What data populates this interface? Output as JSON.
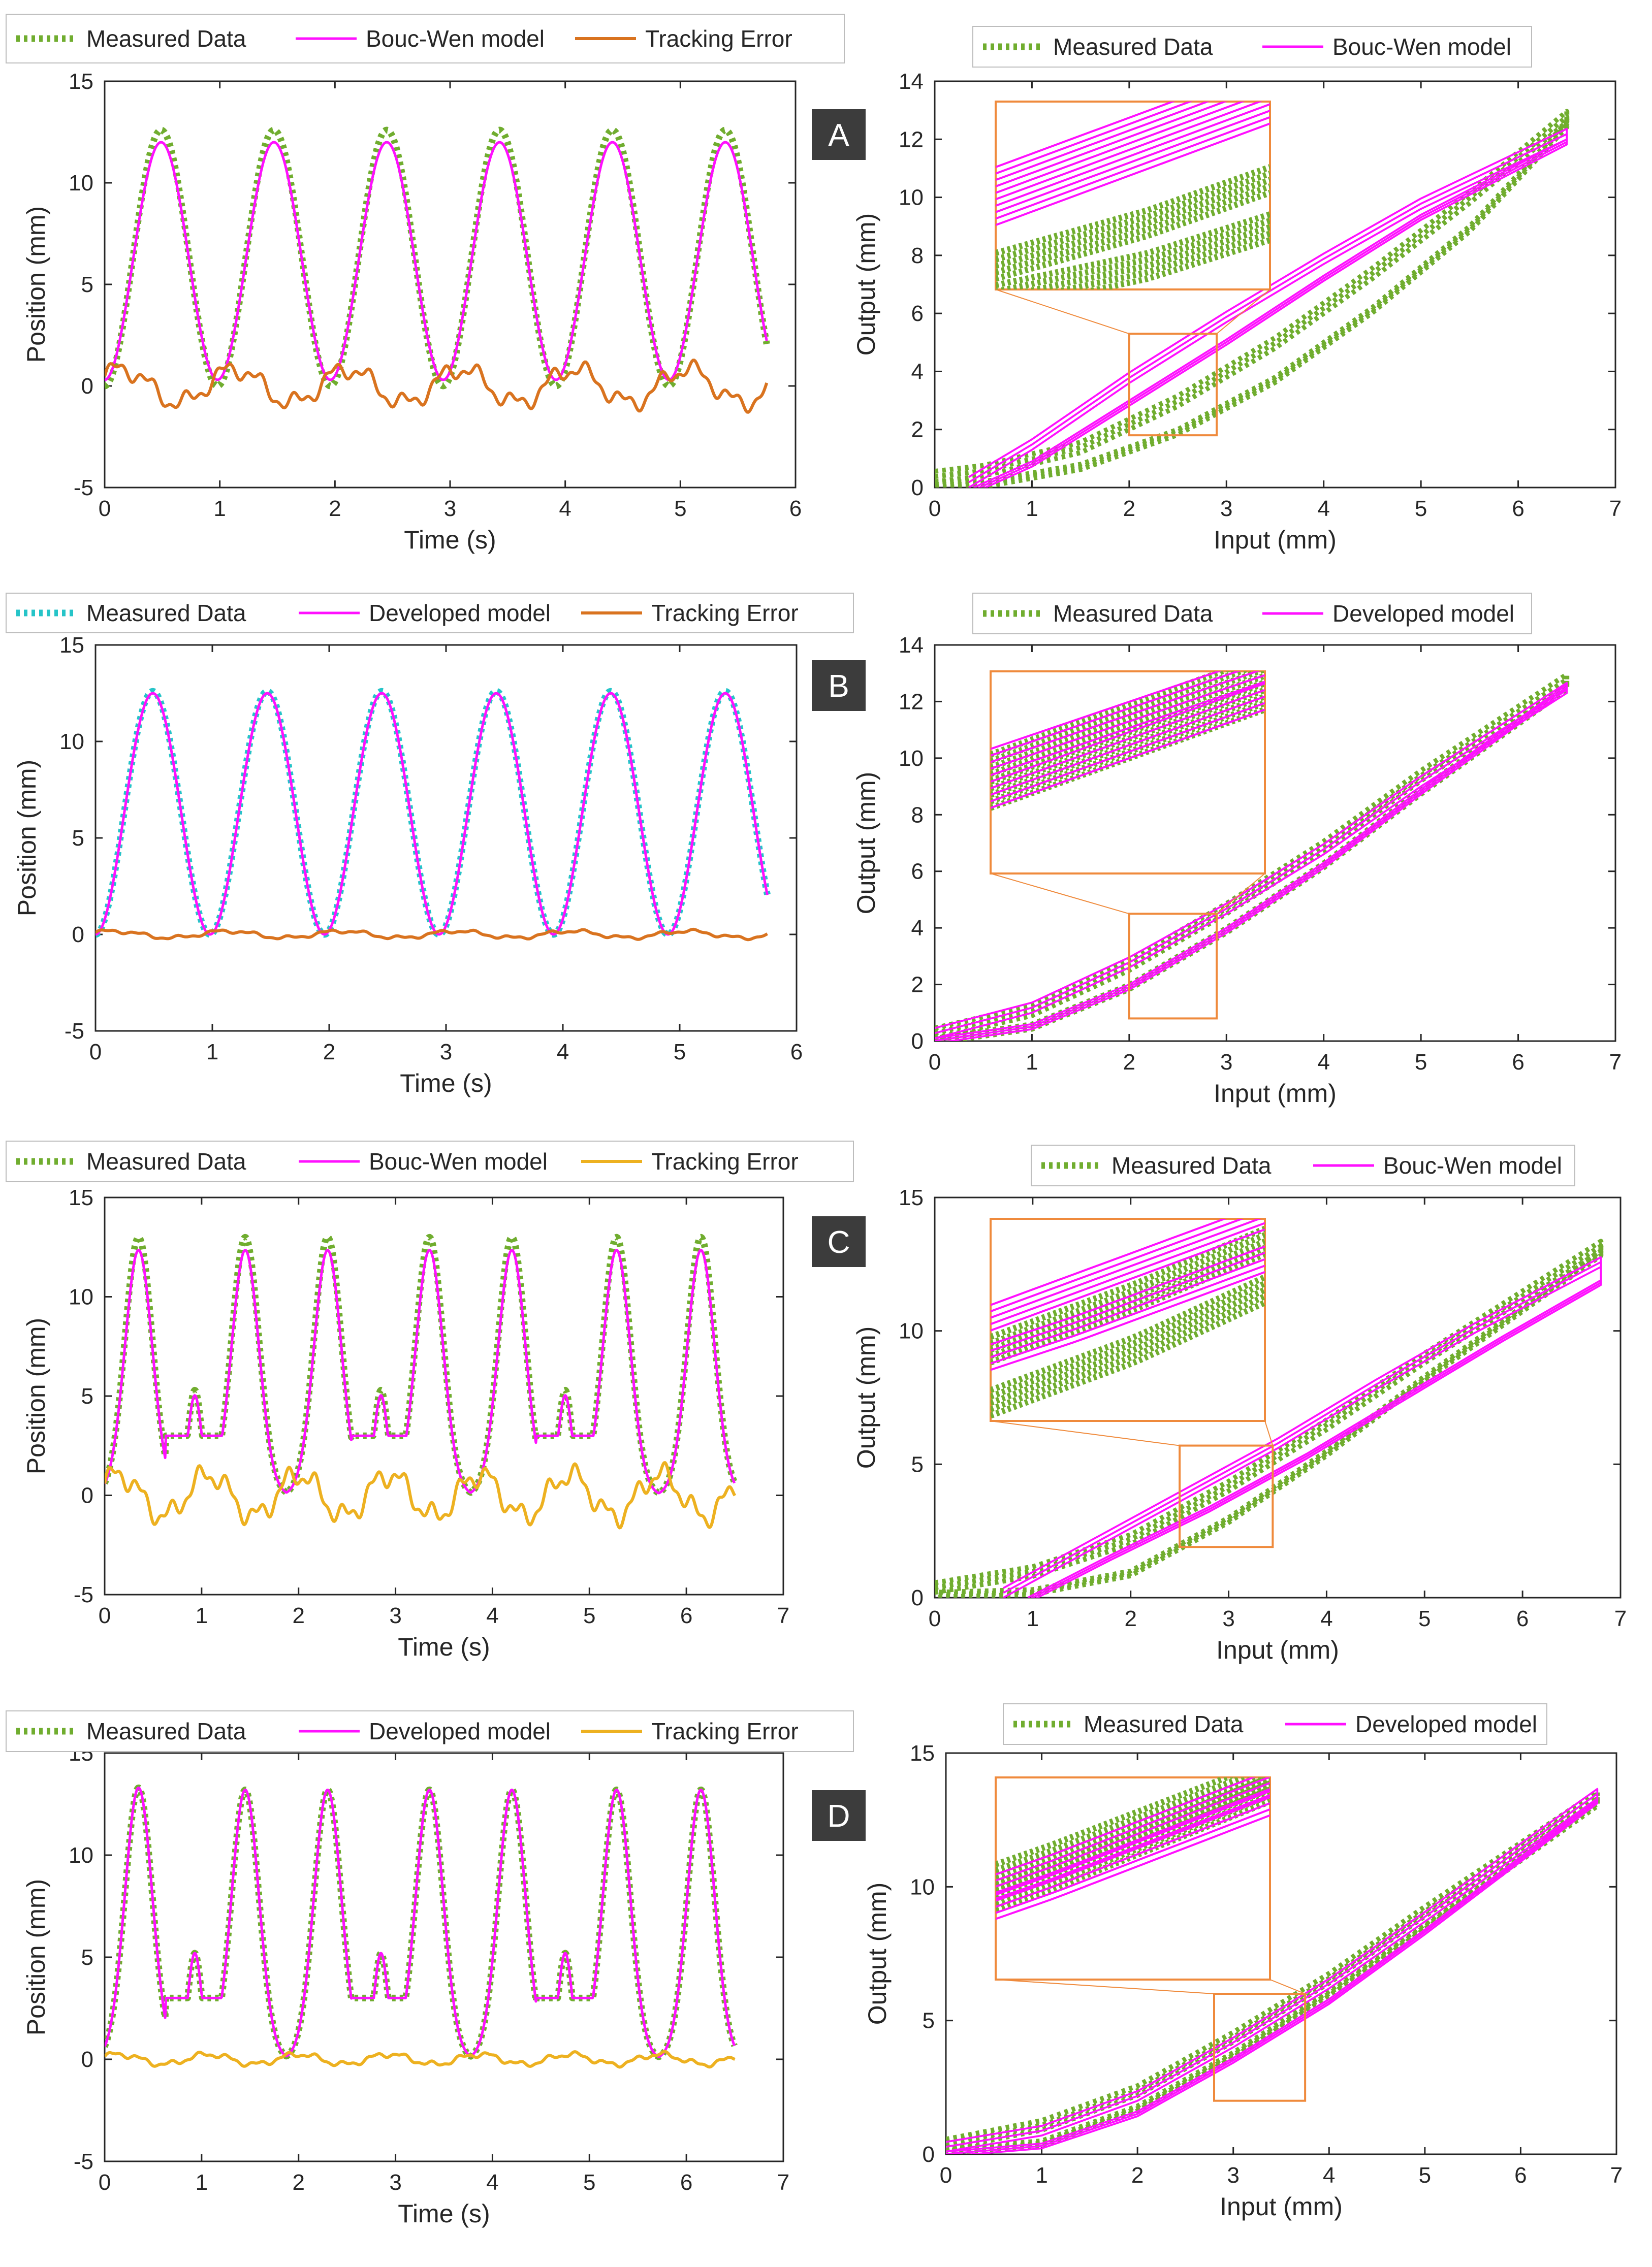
{
  "colors": {
    "measured_green": "#70ad2f",
    "measured_cyan": "#26c4c8",
    "model_magenta": "#ff10ff",
    "error_orange": "#d9731f",
    "error_yellow": "#edb120",
    "inset_orange": "#ef8a3c",
    "label_bg": "#3c3c3c",
    "axis": "#262626"
  },
  "chart_data": [
    {
      "panel": "A-left",
      "type": "line",
      "legend": [
        "Measured Data",
        "Bouc-Wen model",
        "Tracking Error"
      ],
      "legend_styles": [
        "dot-green",
        "line-magenta",
        "line-orange"
      ],
      "xlabel": "Time (s)",
      "ylabel": "Position (mm)",
      "xlim": [
        0,
        6
      ],
      "ylim": [
        -5,
        15
      ],
      "xticks": [
        "0",
        "1",
        "2",
        "3",
        "4",
        "5",
        "6"
      ],
      "yticks": [
        "-5",
        "0",
        "5",
        "10",
        "15"
      ],
      "period_s": 0.98,
      "t_end": 5.75,
      "series": [
        {
          "name": "Measured Data",
          "shape": "sine",
          "min": 0,
          "max": 12.6
        },
        {
          "name": "Bouc-Wen model",
          "shape": "sine",
          "min": 0.3,
          "max": 12.0
        },
        {
          "name": "Tracking Error",
          "shape": "error",
          "amplitude": 1.2
        }
      ]
    },
    {
      "panel": "A-right",
      "label": "A",
      "type": "line",
      "legend": [
        "Measured Data",
        "Bouc-Wen model"
      ],
      "legend_styles": [
        "dot-green",
        "line-magenta"
      ],
      "xlabel": "Input (mm)",
      "ylabel": "Output (mm)",
      "xlim": [
        0,
        7
      ],
      "ylim": [
        0,
        14
      ],
      "xticks": [
        "0",
        "1",
        "2",
        "3",
        "4",
        "5",
        "6",
        "7"
      ],
      "yticks": [
        "0",
        "2",
        "4",
        "6",
        "8",
        "10",
        "12",
        "14"
      ],
      "zoom_box": {
        "x": [
          2.0,
          2.9
        ],
        "y": [
          1.8,
          5.3
        ]
      },
      "series": [
        {
          "name": "Measured Data",
          "upper": [
            [
              0,
              0.2
            ],
            [
              0.5,
              0.4
            ],
            [
              1.5,
              1.2
            ],
            [
              2.5,
              2.8
            ],
            [
              3.5,
              4.8
            ],
            [
              4.5,
              7.2
            ],
            [
              5.5,
              9.8
            ],
            [
              6.5,
              12.6
            ]
          ],
          "lower": [
            [
              0,
              0.2
            ],
            [
              0.5,
              0.2
            ],
            [
              1.5,
              0.8
            ],
            [
              2.5,
              2.0
            ],
            [
              3.5,
              3.8
            ],
            [
              4.5,
              6.2
            ],
            [
              5.5,
              9.0
            ],
            [
              6.5,
              12.6
            ]
          ]
        },
        {
          "name": "Bouc-Wen model",
          "upper": [
            [
              0.35,
              0
            ],
            [
              1,
              1.3
            ],
            [
              2,
              3.6
            ],
            [
              3,
              5.7
            ],
            [
              4,
              7.7
            ],
            [
              5,
              9.6
            ],
            [
              6.5,
              12.0
            ]
          ],
          "lower": [
            [
              0.4,
              0
            ],
            [
              1,
              0.9
            ],
            [
              2,
              3.0
            ],
            [
              3,
              5.1
            ],
            [
              4,
              7.3
            ],
            [
              5,
              9.4
            ],
            [
              6.5,
              12.0
            ]
          ]
        }
      ]
    },
    {
      "panel": "B-left",
      "type": "line",
      "legend": [
        "Measured Data",
        "Developed model",
        "Tracking Error"
      ],
      "legend_styles": [
        "dot-cyan",
        "line-magenta",
        "line-orange"
      ],
      "xlabel": "Time (s)",
      "ylabel": "Position (mm)",
      "xlim": [
        0,
        6
      ],
      "ylim": [
        -5,
        15
      ],
      "xticks": [
        "0",
        "1",
        "2",
        "3",
        "4",
        "5",
        "6"
      ],
      "yticks": [
        "-5",
        "0",
        "5",
        "10",
        "15"
      ],
      "period_s": 0.98,
      "t_end": 5.75,
      "series": [
        {
          "name": "Measured Data",
          "shape": "sine",
          "min": 0,
          "max": 12.6
        },
        {
          "name": "Developed model",
          "shape": "sine",
          "min": 0,
          "max": 12.5
        },
        {
          "name": "Tracking Error",
          "shape": "error",
          "amplitude": 0.25
        }
      ]
    },
    {
      "panel": "B-right",
      "label": "B",
      "type": "line",
      "legend": [
        "Measured Data",
        "Developed model"
      ],
      "legend_styles": [
        "dot-green",
        "line-magenta"
      ],
      "xlabel": "Input (mm)",
      "ylabel": "Output (mm)",
      "xlim": [
        0,
        7
      ],
      "ylim": [
        0,
        14
      ],
      "xticks": [
        "0",
        "1",
        "2",
        "3",
        "4",
        "5",
        "6",
        "7"
      ],
      "yticks": [
        "0",
        "2",
        "4",
        "6",
        "8",
        "10",
        "12",
        "14"
      ],
      "zoom_box": {
        "x": [
          2.0,
          2.9
        ],
        "y": [
          0.8,
          4.5
        ]
      },
      "series": [
        {
          "name": "Measured Data",
          "upper": [
            [
              0,
              0.1
            ],
            [
              1,
              0.9
            ],
            [
              2,
              2.5
            ],
            [
              3,
              4.5
            ],
            [
              4,
              6.7
            ],
            [
              5,
              9.2
            ],
            [
              6.5,
              12.6
            ]
          ],
          "lower": [
            [
              0,
              0.1
            ],
            [
              1,
              0.6
            ],
            [
              2,
              2.0
            ],
            [
              3,
              4.0
            ],
            [
              4,
              6.3
            ],
            [
              5,
              8.9
            ],
            [
              6.5,
              12.6
            ]
          ]
        },
        {
          "name": "Developed model",
          "upper": [
            [
              0,
              0.1
            ],
            [
              1,
              1.0
            ],
            [
              2,
              2.6
            ],
            [
              3,
              4.5
            ],
            [
              4,
              6.6
            ],
            [
              5,
              9.0
            ],
            [
              6.5,
              12.3
            ]
          ],
          "lower": [
            [
              0,
              0.1
            ],
            [
              1,
              0.6
            ],
            [
              2,
              2.0
            ],
            [
              3,
              4.0
            ],
            [
              4,
              6.3
            ],
            [
              5,
              8.9
            ],
            [
              6.5,
              12.6
            ]
          ]
        }
      ]
    },
    {
      "panel": "C-left",
      "type": "line",
      "legend": [
        "Measured Data",
        "Bouc-Wen model",
        "Tracking Error"
      ],
      "legend_styles": [
        "dot-green",
        "line-magenta",
        "line-yellow"
      ],
      "xlabel": "Time (s)",
      "ylabel": "Position (mm)",
      "xlim": [
        0,
        7
      ],
      "ylim": [
        -5,
        15
      ],
      "xticks": [
        "0",
        "1",
        "2",
        "3",
        "4",
        "5",
        "6",
        "7"
      ],
      "yticks": [
        "-5",
        "0",
        "5",
        "10",
        "15"
      ],
      "peak_times": [
        0.35,
        0.93,
        1.45,
        2.3,
        2.85,
        3.35,
        4.2,
        4.75,
        5.28,
        6.15
      ],
      "peak_values": [
        13,
        5.3,
        13,
        13,
        5.3,
        13,
        13,
        5.3,
        13,
        13
      ],
      "t_end": 6.5,
      "series": [
        {
          "name": "Measured Data",
          "shape": "peaks"
        },
        {
          "name": "Bouc-Wen model",
          "shape": "peaks",
          "scale": 0.95
        },
        {
          "name": "Tracking Error",
          "shape": "error",
          "amplitude": 1.5
        }
      ]
    },
    {
      "panel": "C-right",
      "label": "C",
      "type": "line",
      "legend": [
        "Measured Data",
        "Bouc-Wen model"
      ],
      "legend_styles": [
        "dot-green",
        "line-magenta"
      ],
      "xlabel": "Input (mm)",
      "ylabel": "Output (mm)",
      "xlim": [
        0,
        7
      ],
      "ylim": [
        0,
        15
      ],
      "xticks": [
        "0",
        "1",
        "2",
        "3",
        "4",
        "5",
        "6",
        "7"
      ],
      "yticks": [
        "0",
        "5",
        "10",
        "15"
      ],
      "zoom_box": {
        "x": [
          2.5,
          3.45
        ],
        "y": [
          1.9,
          5.7
        ]
      },
      "series": [
        {
          "name": "Measured Data",
          "upper": [
            [
              0,
              0.2
            ],
            [
              1,
              0.8
            ],
            [
              2,
              2.0
            ],
            [
              3,
              4.0
            ],
            [
              4,
              6.3
            ],
            [
              5,
              8.8
            ],
            [
              6.8,
              13.0
            ]
          ],
          "lower": [
            [
              0,
              0.2
            ],
            [
              1,
              0.3
            ],
            [
              2,
              1.0
            ],
            [
              3,
              3.0
            ],
            [
              4,
              5.5
            ],
            [
              5,
              8.3
            ],
            [
              6.8,
              13.0
            ]
          ]
        },
        {
          "name": "Bouc-Wen model",
          "upper": [
            [
              0.7,
              0
            ],
            [
              1.5,
              1.6
            ],
            [
              2.5,
              3.6
            ],
            [
              3.5,
              5.6
            ],
            [
              4.5,
              7.8
            ],
            [
              5.5,
              9.9
            ],
            [
              6.8,
              12.4
            ]
          ],
          "lower": [
            [
              0.95,
              0
            ],
            [
              1.8,
              1.6
            ],
            [
              2.8,
              3.4
            ],
            [
              3.8,
              5.4
            ],
            [
              4.8,
              7.6
            ],
            [
              5.8,
              9.8
            ],
            [
              6.8,
              11.9
            ]
          ]
        }
      ]
    },
    {
      "panel": "D-left",
      "type": "line",
      "legend": [
        "Measured Data",
        "Developed model",
        "Tracking Error"
      ],
      "legend_styles": [
        "dot-green",
        "line-magenta",
        "line-yellow"
      ],
      "xlabel": "Time (s)",
      "ylabel": "Position (mm)",
      "xlim": [
        0,
        7
      ],
      "ylim": [
        -5,
        15
      ],
      "xticks": [
        "0",
        "1",
        "2",
        "3",
        "4",
        "5",
        "6",
        "7"
      ],
      "yticks": [
        "-5",
        "0",
        "5",
        "10",
        "15"
      ],
      "peak_times": [
        0.35,
        0.93,
        1.45,
        2.3,
        2.85,
        3.35,
        4.2,
        4.75,
        5.28,
        6.15
      ],
      "peak_values": [
        13.3,
        5.2,
        13.2,
        13.2,
        5.2,
        13.2,
        13.2,
        5.2,
        13.2,
        13.2
      ],
      "t_end": 6.5,
      "series": [
        {
          "name": "Measured Data",
          "shape": "peaks"
        },
        {
          "name": "Developed model",
          "shape": "peaks",
          "scale": 1.0
        },
        {
          "name": "Tracking Error",
          "shape": "error",
          "amplitude": 0.35
        }
      ]
    },
    {
      "panel": "D-right",
      "label": "D",
      "type": "line",
      "legend": [
        "Measured Data",
        "Developed model"
      ],
      "legend_styles": [
        "dot-green",
        "line-magenta"
      ],
      "xlabel": "Input (mm)",
      "ylabel": "Output (mm)",
      "xlim": [
        0,
        7
      ],
      "ylim": [
        0,
        15
      ],
      "xticks": [
        "0",
        "1",
        "2",
        "3",
        "4",
        "5",
        "6",
        "7"
      ],
      "yticks": [
        "0",
        "5",
        "10",
        "15"
      ],
      "zoom_box": {
        "x": [
          2.8,
          3.75
        ],
        "y": [
          2.0,
          6.0
        ]
      },
      "series": [
        {
          "name": "Measured Data",
          "upper": [
            [
              0,
              0.2
            ],
            [
              1,
              0.9
            ],
            [
              2,
              2.2
            ],
            [
              3,
              4.2
            ],
            [
              4,
              6.4
            ],
            [
              5,
              8.9
            ],
            [
              6.8,
              13.2
            ]
          ],
          "lower": [
            [
              0,
              0.2
            ],
            [
              1,
              0.5
            ],
            [
              2,
              1.8
            ],
            [
              3,
              3.8
            ],
            [
              4,
              6.1
            ],
            [
              5,
              8.6
            ],
            [
              6.8,
              13.2
            ]
          ]
        },
        {
          "name": "Developed model",
          "upper": [
            [
              0,
              0.1
            ],
            [
              1,
              0.7
            ],
            [
              2,
              2.0
            ],
            [
              3,
              4.0
            ],
            [
              4,
              6.2
            ],
            [
              5,
              8.7
            ],
            [
              6.8,
              13.3
            ]
          ],
          "lower": [
            [
              0,
              0.1
            ],
            [
              1,
              0.4
            ],
            [
              2,
              1.6
            ],
            [
              3,
              3.6
            ],
            [
              4,
              5.8
            ],
            [
              5,
              8.4
            ],
            [
              6.8,
              13.3
            ]
          ]
        }
      ]
    }
  ]
}
